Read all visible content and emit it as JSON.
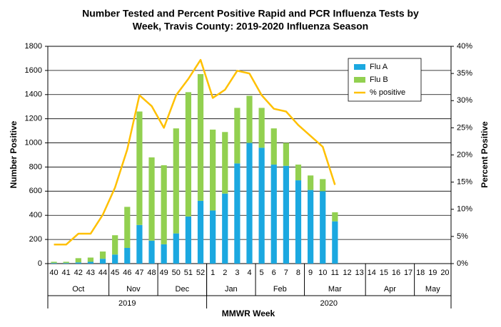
{
  "chart_data": {
    "type": "stacked-bar-line",
    "title": [
      "Number Tested and Percent Positive Rapid and PCR Influenza Tests by",
      "Week, Travis County:  2019-2020 Influenza Season"
    ],
    "x_label": "MMWR Week",
    "y_label": "Number Positive",
    "y2_label": "Percent Positive",
    "categories": [
      "40",
      "41",
      "42",
      "43",
      "44",
      "45",
      "46",
      "47",
      "48",
      "49",
      "50",
      "51",
      "52",
      "1",
      "2",
      "3",
      "4",
      "5",
      "6",
      "7",
      "8",
      "9",
      "10",
      "11",
      "12",
      "13",
      "14",
      "15",
      "16",
      "17",
      "18",
      "19",
      "20"
    ],
    "months": [
      {
        "label": "Oct",
        "span": 5
      },
      {
        "label": "Nov",
        "span": 4
      },
      {
        "label": "Dec",
        "span": 4
      },
      {
        "label": "Jan",
        "span": 4
      },
      {
        "label": "Feb",
        "span": 4
      },
      {
        "label": "Mar",
        "span": 5
      },
      {
        "label": "Apr",
        "span": 4
      },
      {
        "label": "May",
        "span": 3
      }
    ],
    "years": [
      {
        "label": "2019",
        "span": 13
      },
      {
        "label": "2020",
        "span": 20
      }
    ],
    "series": [
      {
        "name": "Flu A",
        "color": "#1ba8e0",
        "values": [
          5,
          5,
          10,
          15,
          40,
          75,
          130,
          320,
          190,
          160,
          250,
          390,
          520,
          440,
          580,
          830,
          1000,
          960,
          820,
          810,
          690,
          610,
          600,
          350,
          null,
          null,
          null,
          null,
          null,
          null,
          null,
          null,
          null
        ]
      },
      {
        "name": "Flu B",
        "color": "#92d050",
        "values": [
          10,
          10,
          35,
          35,
          60,
          160,
          340,
          940,
          690,
          655,
          870,
          1030,
          1050,
          670,
          510,
          460,
          390,
          330,
          300,
          190,
          130,
          120,
          100,
          75,
          null,
          null,
          null,
          null,
          null,
          null,
          null,
          null,
          null
        ]
      },
      {
        "name": "% positive",
        "color": "#ffc000",
        "axis": "y2",
        "values": [
          3.5,
          3.5,
          5.5,
          5.5,
          9,
          14,
          21,
          31,
          29,
          25,
          31,
          34,
          37.5,
          30.5,
          32,
          35.5,
          35,
          31,
          28.5,
          28,
          25.5,
          23.5,
          21.5,
          14.5,
          null,
          null,
          null,
          null,
          null,
          null,
          null,
          null,
          null
        ]
      }
    ],
    "ylim": [
      0,
      1800
    ],
    "yticks": [
      0,
      200,
      400,
      600,
      800,
      1000,
      1200,
      1400,
      1600,
      1800
    ],
    "y2lim": [
      0,
      40
    ],
    "y2ticks": [
      {
        "value": 0,
        "label": "0%"
      },
      {
        "value": 5,
        "label": "5%"
      },
      {
        "value": 10,
        "label": "10%"
      },
      {
        "value": 15,
        "label": "15%"
      },
      {
        "value": 20,
        "label": "20%"
      },
      {
        "value": 25,
        "label": "25%"
      },
      {
        "value": 30,
        "label": "30%"
      },
      {
        "value": 35,
        "label": "35%"
      },
      {
        "value": 40,
        "label": "40%"
      }
    ],
    "grid": true,
    "legend": "upper right"
  }
}
